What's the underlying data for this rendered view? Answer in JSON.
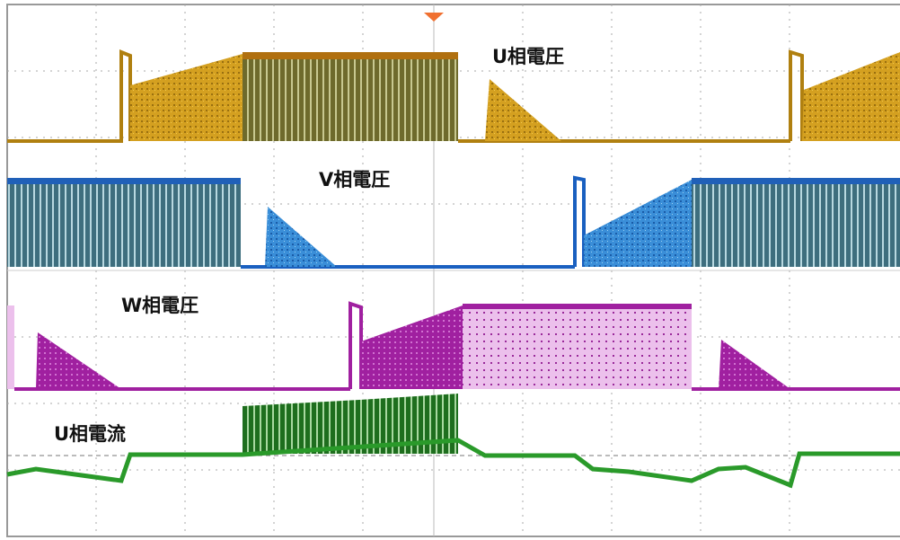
{
  "traces": [
    {
      "label": "U相電圧"
    },
    {
      "label": "V相電圧"
    },
    {
      "label": "W相電圧"
    },
    {
      "label": "U相電流"
    }
  ]
}
